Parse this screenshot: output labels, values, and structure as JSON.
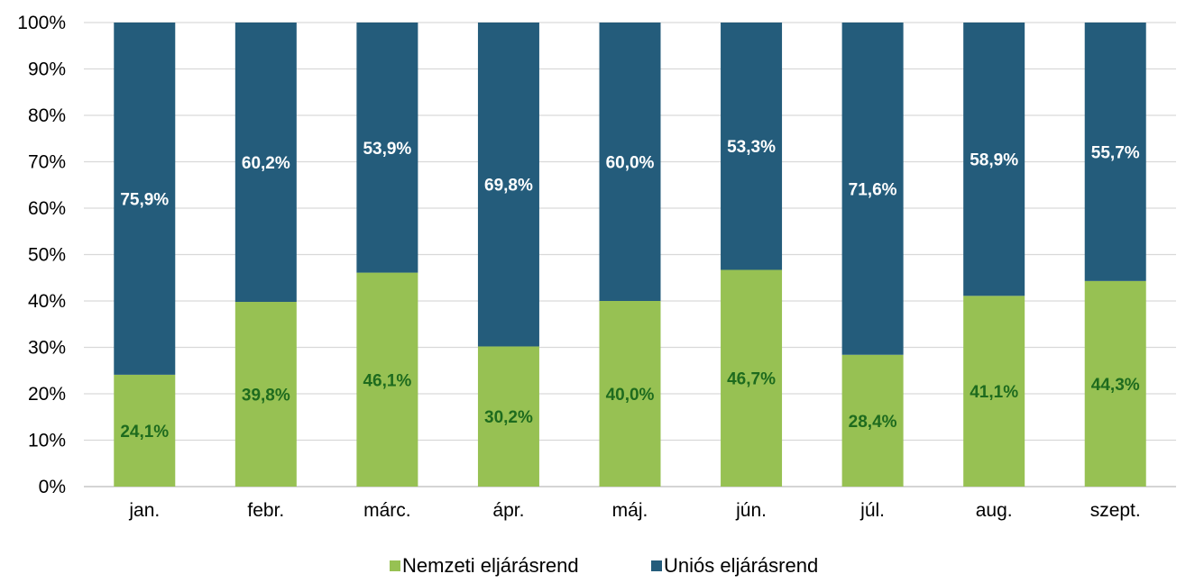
{
  "chart_data": {
    "type": "bar",
    "stacked": true,
    "percent_stacked": true,
    "categories": [
      "jan.",
      "febr.",
      "márc.",
      "ápr.",
      "máj.",
      "jún.",
      "júl.",
      "aug.",
      "szept."
    ],
    "series": [
      {
        "name": "Nemzeti eljárásrend",
        "values": [
          24.1,
          39.8,
          46.1,
          30.2,
          40.0,
          46.7,
          28.4,
          41.1,
          44.3
        ],
        "labels": [
          "24,1%",
          "39,8%",
          "46,1%",
          "30,2%",
          "40,0%",
          "46,7%",
          "28,4%",
          "41,1%",
          "44,3%"
        ],
        "color": "#97c153",
        "label_color": "#1e6b1e"
      },
      {
        "name": "Uniós eljárásrend",
        "values": [
          75.9,
          60.2,
          53.9,
          69.8,
          60.0,
          53.3,
          71.6,
          58.9,
          55.7
        ],
        "labels": [
          "75,9%",
          "60,2%",
          "53,9%",
          "69,8%",
          "60,0%",
          "53,3%",
          "71,6%",
          "58,9%",
          "55,7%"
        ],
        "color": "#245c7b",
        "label_color": "#ffffff"
      }
    ],
    "ylim": [
      0,
      100
    ],
    "y_ticks": [
      0,
      10,
      20,
      30,
      40,
      50,
      60,
      70,
      80,
      90,
      100
    ],
    "y_tick_labels": [
      "0%",
      "10%",
      "20%",
      "30%",
      "40%",
      "50%",
      "60%",
      "70%",
      "80%",
      "90%",
      "100%"
    ],
    "title": "",
    "xlabel": "",
    "ylabel": "",
    "grid": true,
    "legend_position": "bottom-center"
  }
}
